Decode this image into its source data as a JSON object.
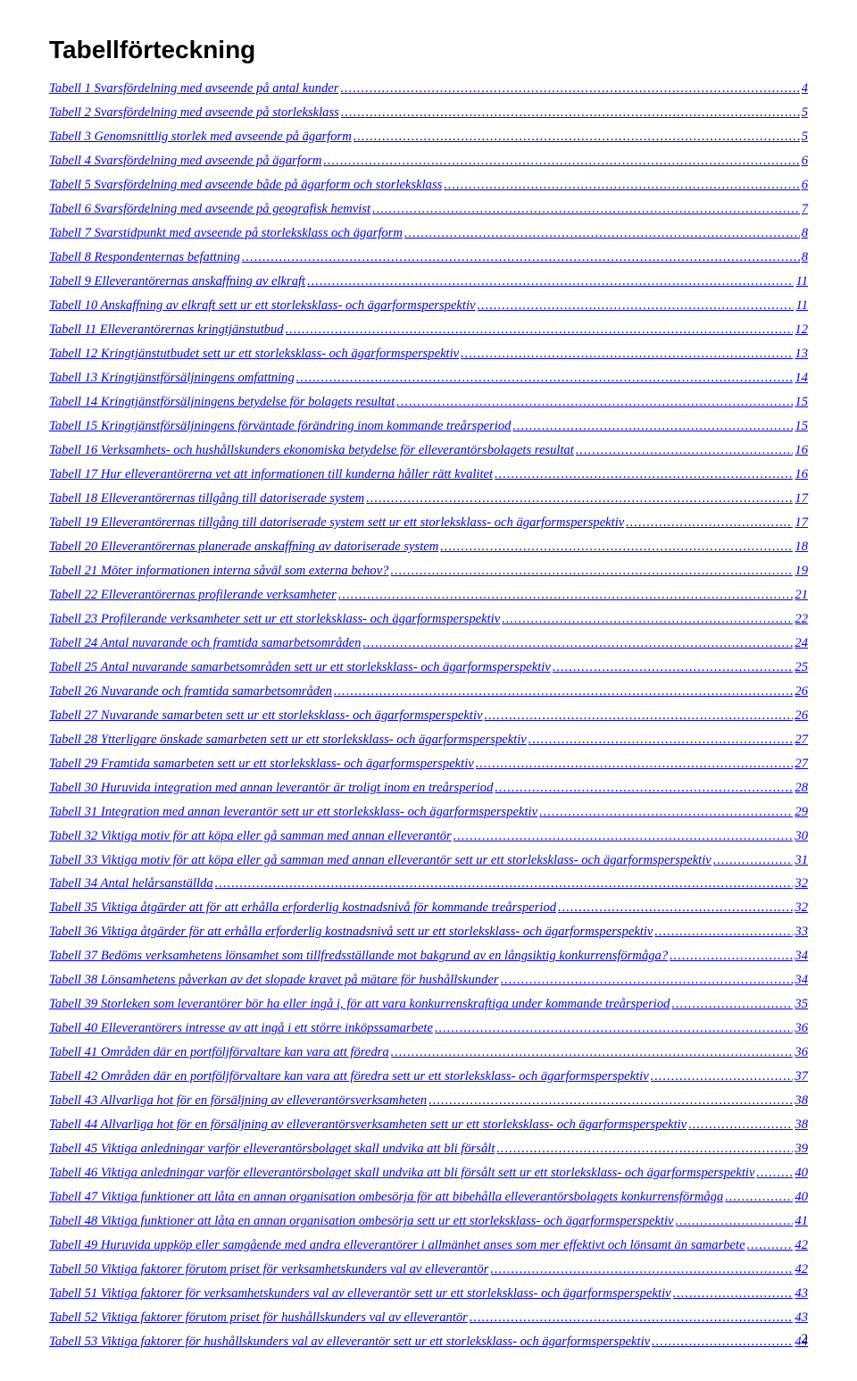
{
  "heading": "Tabellförteckning",
  "link_color": "#0000ee",
  "font_family_body": "Times New Roman",
  "font_family_heading": "Arial",
  "page_number": "2",
  "toc": [
    {
      "label": "Tabell 1   Svarsfördelning med avseende på antal kunder",
      "page": "4"
    },
    {
      "label": "Tabell 2   Svarsfördelning med avseende på storleksklass",
      "page": "5"
    },
    {
      "label": "Tabell 3   Genomsnittlig storlek med avseende på ägarform",
      "page": "5"
    },
    {
      "label": "Tabell 4   Svarsfördelning med avseende på ägarform",
      "page": "6"
    },
    {
      "label": "Tabell 5   Svarsfördelning med avseende både på ägarform och storleksklass",
      "page": "6"
    },
    {
      "label": "Tabell 6   Svarsfördelning med avseende på geografisk hemvist",
      "page": "7"
    },
    {
      "label": "Tabell 7   Svarstidpunkt med avseende på storleksklass och ägarform",
      "page": "8"
    },
    {
      "label": "Tabell 8   Respondenternas befattning",
      "page": "8"
    },
    {
      "label": "Tabell 9   Elleverantörernas anskaffning av elkraft",
      "page": "11"
    },
    {
      "label": "Tabell 10   Anskaffning av elkraft sett ur ett storleksklass- och ägarformsperspektiv",
      "page": "11"
    },
    {
      "label": "Tabell 11   Elleverantörernas kringtjänstutbud",
      "page": "12"
    },
    {
      "label": "Tabell 12   Kringtjänstutbudet sett ur ett storleksklass- och ägarformsperspektiv",
      "page": "13"
    },
    {
      "label": "Tabell 13   Kringtjänstförsäljningens omfattning",
      "page": "14"
    },
    {
      "label": "Tabell 14   Kringtjänstförsäljningens betydelse för bolagets resultat",
      "page": "15"
    },
    {
      "label": "Tabell 15   Kringtjänstförsäljningens förväntade förändring inom kommande treårsperiod",
      "page": "15"
    },
    {
      "label": "Tabell 16   Verksamhets- och hushållskunders ekonomiska betydelse för elleverantörsbolagets resultat",
      "page": "16"
    },
    {
      "label": "Tabell 17   Hur elleverantörerna vet att informationen till kunderna håller rätt kvalitet",
      "page": "16"
    },
    {
      "label": "Tabell 18   Elleverantörernas tillgång till datoriserade system",
      "page": "17"
    },
    {
      "label": "Tabell 19   Elleverantörernas tillgång till datoriserade system sett ur ett storleksklass- och ägarformsperspektiv",
      "page": "17"
    },
    {
      "label": "Tabell 20   Elleverantörernas planerade anskaffning av datoriserade system",
      "page": "18"
    },
    {
      "label": "Tabell 21   Möter informationen interna såväl som externa behov?",
      "page": "19"
    },
    {
      "label": "Tabell 22   Elleverantörernas profilerande verksamheter",
      "page": "21"
    },
    {
      "label": "Tabell 23   Profilerande verksamheter sett ur ett storleksklass- och ägarformsperspektiv",
      "page": "22"
    },
    {
      "label": "Tabell 24   Antal nuvarande och framtida samarbetsområden",
      "page": "24"
    },
    {
      "label": "Tabell 25   Antal nuvarande samarbetsområden sett ur ett storleksklass- och ägarformsperspektiv",
      "page": "25"
    },
    {
      "label": "Tabell 26   Nuvarande och framtida samarbetsområden",
      "page": "26"
    },
    {
      "label": "Tabell 27   Nuvarande samarbeten sett ur ett storleksklass- och ägarformsperspektiv",
      "page": "26"
    },
    {
      "label": "Tabell 28   Ytterligare önskade samarbeten sett ur ett storleksklass- och ägarformsperspektiv",
      "page": "27"
    },
    {
      "label": "Tabell 29   Framtida samarbeten sett ur ett storleksklass- och ägarformsperspektiv",
      "page": "27"
    },
    {
      "label": "Tabell 30   Huruvida integration med annan leverantör är troligt inom en treårsperiod",
      "page": "28"
    },
    {
      "label": "Tabell 31   Integration med annan leverantör sett ur ett storleksklass- och ägarformsperspektiv",
      "page": "29"
    },
    {
      "label": "Tabell 32   Viktiga motiv för att köpa eller gå samman med annan elleverantör",
      "page": "30"
    },
    {
      "label": "Tabell 33   Viktiga motiv för att köpa eller gå samman med annan elleverantör sett ur ett storleksklass- och ägarformsperspektiv",
      "page": "31"
    },
    {
      "label": "Tabell 34   Antal helårsanställda",
      "page": "32"
    },
    {
      "label": "Tabell 35   Viktiga åtgärder att för att erhålla erforderlig kostnadsnivå för kommande treårsperiod",
      "page": "32"
    },
    {
      "label": "Tabell 36   Viktiga åtgärder för att erhålla erforderlig kostnadsnivå sett ur ett storleksklass- och ägarformsperspektiv",
      "page": "33"
    },
    {
      "label": "Tabell 37   Bedöms verksamhetens lönsamhet som tillfredsställande mot bakgrund av en långsiktig konkurrensförmåga?",
      "page": "34"
    },
    {
      "label": "Tabell 38   Lönsamhetens påverkan av det slopade kravet på mätare för hushållskunder",
      "page": "34"
    },
    {
      "label": "Tabell 39   Storleken som leverantörer bör ha eller ingå i, för att vara konkurrenskraftiga under kommande treårsperiod",
      "page": "35"
    },
    {
      "label": "Tabell 40   Elleverantörers intresse av att ingå i ett större inköpssamarbete",
      "page": "36"
    },
    {
      "label": "Tabell 41   Områden där en portföljförvaltare kan vara att föredra",
      "page": "36"
    },
    {
      "label": "Tabell 42   Områden där en portföljförvaltare kan vara att föredra sett ur ett storleksklass- och ägarformsperspektiv",
      "page": "37"
    },
    {
      "label": "Tabell 43   Allvarliga hot för en försäljning av elleverantörsverksamheten",
      "page": "38"
    },
    {
      "label": "Tabell 44   Allvarliga hot för en försäljning av elleverantörsverksamheten sett ur ett storleksklass- och ägarformsperspektiv",
      "page": "38"
    },
    {
      "label": "Tabell 45   Viktiga anledningar varför elleverantörsbolaget skall undvika att bli försålt",
      "page": "39"
    },
    {
      "label": "Tabell 46   Viktiga anledningar varför elleverantörsbolaget skall undvika att bli försålt sett ur ett storleksklass- och ägarformsperspektiv",
      "page": "40"
    },
    {
      "label": "Tabell 47   Viktiga funktioner att låta en annan organisation ombesörja för att bibehålla elleverantörsbolagets konkurrensförmåga",
      "page": "40"
    },
    {
      "label": "Tabell 48   Viktiga funktioner att låta en annan organisation ombesörja sett ur ett storleksklass- och ägarformsperspektiv",
      "page": "41"
    },
    {
      "label": "Tabell 49   Huruvida uppköp eller samgående med andra elleverantörer i allmänhet anses som mer effektivt och lönsamt än samarbete",
      "page": "42"
    },
    {
      "label": "Tabell 50   Viktiga faktorer förutom priset för verksamhetskunders val av elleverantör",
      "page": "42"
    },
    {
      "label": "Tabell 51   Viktiga faktorer för verksamhetskunders val av elleverantör sett ur ett storleksklass- och ägarformsperspektiv",
      "page": "43"
    },
    {
      "label": "Tabell 52   Viktiga faktorer förutom priset för hushållskunders val av elleverantör",
      "page": "43"
    },
    {
      "label": "Tabell 53   Viktiga faktorer för hushållskunders val av elleverantör sett ur ett storleksklass- och ägarformsperspektiv",
      "page": "44"
    }
  ]
}
